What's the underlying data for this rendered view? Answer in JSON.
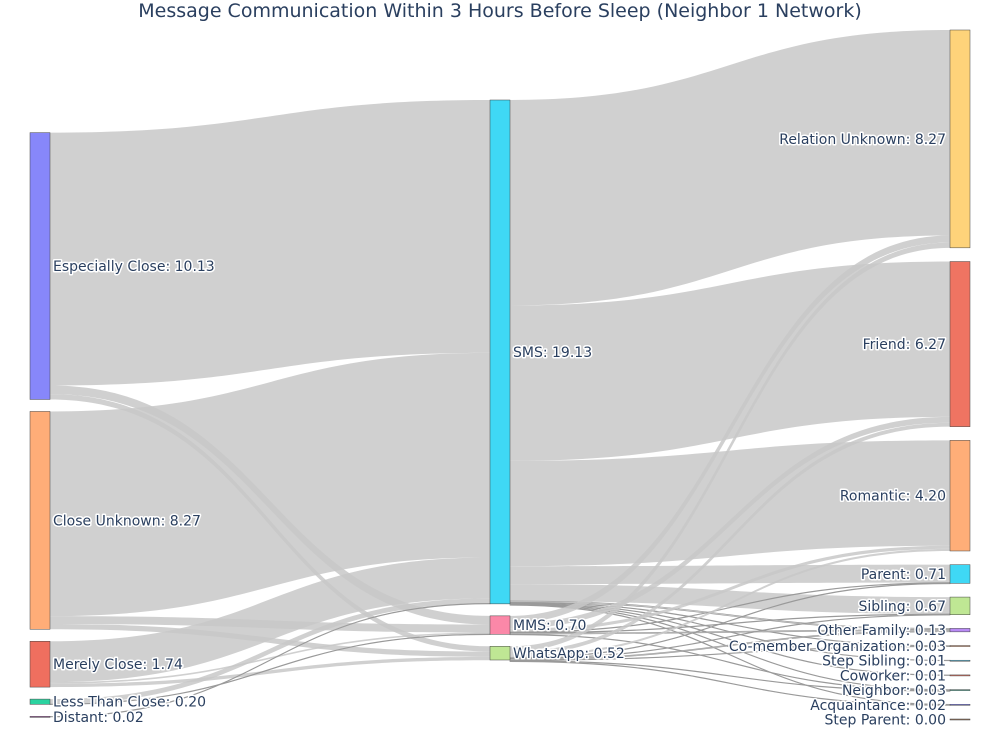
{
  "chart_data": {
    "type": "sankey",
    "title": "Message Communication Within 3 Hours Before Sleep (Neighbor 1 Network)",
    "link_color": "#c8c8c8",
    "columns": [
      [
        {
          "id": "especially_close",
          "label": "Especially Close: 10.13",
          "value": 10.13,
          "color": "#8787fa"
        },
        {
          "id": "close_unknown",
          "label": "Close Unknown: 8.27",
          "value": 8.27,
          "color": "#ffad78"
        },
        {
          "id": "merely_close",
          "label": "Merely Close: 1.74",
          "value": 1.74,
          "color": "#ef6f5f"
        },
        {
          "id": "less_than_close",
          "label": "Less Than Close: 0.20",
          "value": 0.2,
          "color": "#2bd3a0"
        },
        {
          "id": "distant",
          "label": "Distant: 0.02",
          "value": 0.02,
          "color": "#a05aa0"
        }
      ],
      [
        {
          "id": "sms",
          "label": "SMS: 19.13",
          "value": 19.13,
          "color": "#3fd8f5"
        },
        {
          "id": "mms",
          "label": "MMS: 0.70",
          "value": 0.7,
          "color": "#fb88a8"
        },
        {
          "id": "whatsapp",
          "label": "WhatsApp: 0.52",
          "value": 0.52,
          "color": "#bfe794"
        }
      ],
      [
        {
          "id": "relation_unknown",
          "label": "Relation Unknown: 8.27",
          "value": 8.27,
          "color": "#fed37a"
        },
        {
          "id": "friend",
          "label": "Friend: 6.27",
          "value": 6.27,
          "color": "#ef7462"
        },
        {
          "id": "romantic",
          "label": "Romantic: 4.20",
          "value": 4.2,
          "color": "#ffae78"
        },
        {
          "id": "parent",
          "label": "Parent: 0.71",
          "value": 0.71,
          "color": "#3fd8f5"
        },
        {
          "id": "sibling",
          "label": "Sibling: 0.67",
          "value": 0.67,
          "color": "#bfe794"
        },
        {
          "id": "other_family",
          "label": "Other Family: 0.13",
          "value": 0.13,
          "color": "#b98af5"
        },
        {
          "id": "comember_org",
          "label": "Co-member Organization: 0.03",
          "value": 0.03,
          "color": "#e8a07a"
        },
        {
          "id": "step_sibling",
          "label": "Step Sibling: 0.01",
          "value": 0.01,
          "color": "#67c8e8"
        },
        {
          "id": "coworker",
          "label": "Coworker: 0.01",
          "value": 0.01,
          "color": "#ef7462"
        },
        {
          "id": "neighbor",
          "label": "Neighbor: 0.03",
          "value": 0.03,
          "color": "#5ab4a0"
        },
        {
          "id": "acquaintance",
          "label": "Acquaintance: 0.02",
          "value": 0.02,
          "color": "#8787fa"
        },
        {
          "id": "step_parent",
          "label": "Step Parent: 0.00",
          "value": 0.0,
          "color": "#a07a60"
        }
      ]
    ],
    "links": [
      {
        "source": "especially_close",
        "target": "sms",
        "value": 9.6
      },
      {
        "source": "especially_close",
        "target": "mms",
        "value": 0.33
      },
      {
        "source": "especially_close",
        "target": "whatsapp",
        "value": 0.2
      },
      {
        "source": "close_unknown",
        "target": "sms",
        "value": 7.77
      },
      {
        "source": "close_unknown",
        "target": "mms",
        "value": 0.3
      },
      {
        "source": "close_unknown",
        "target": "whatsapp",
        "value": 0.2
      },
      {
        "source": "merely_close",
        "target": "sms",
        "value": 1.55
      },
      {
        "source": "merely_close",
        "target": "mms",
        "value": 0.06
      },
      {
        "source": "merely_close",
        "target": "whatsapp",
        "value": 0.13
      },
      {
        "source": "less_than_close",
        "target": "sms",
        "value": 0.19
      },
      {
        "source": "less_than_close",
        "target": "mms",
        "value": 0.01
      },
      {
        "source": "distant",
        "target": "sms",
        "value": 0.02
      },
      {
        "source": "sms",
        "target": "relation_unknown",
        "value": 7.8
      },
      {
        "source": "sms",
        "target": "friend",
        "value": 5.9
      },
      {
        "source": "sms",
        "target": "romantic",
        "value": 4.0
      },
      {
        "source": "sms",
        "target": "parent",
        "value": 0.68
      },
      {
        "source": "sms",
        "target": "sibling",
        "value": 0.64
      },
      {
        "source": "sms",
        "target": "other_family",
        "value": 0.05
      },
      {
        "source": "sms",
        "target": "comember_org",
        "value": 0.02
      },
      {
        "source": "sms",
        "target": "step_sibling",
        "value": 0.01
      },
      {
        "source": "sms",
        "target": "coworker",
        "value": 0.01
      },
      {
        "source": "sms",
        "target": "neighbor",
        "value": 0.01
      },
      {
        "source": "sms",
        "target": "acquaintance",
        "value": 0.01
      },
      {
        "source": "mms",
        "target": "relation_unknown",
        "value": 0.27
      },
      {
        "source": "mms",
        "target": "friend",
        "value": 0.22
      },
      {
        "source": "mms",
        "target": "romantic",
        "value": 0.12
      },
      {
        "source": "mms",
        "target": "parent",
        "value": 0.02
      },
      {
        "source": "mms",
        "target": "sibling",
        "value": 0.02
      },
      {
        "source": "mms",
        "target": "other_family",
        "value": 0.04
      },
      {
        "source": "mms",
        "target": "neighbor",
        "value": 0.01
      },
      {
        "source": "whatsapp",
        "target": "relation_unknown",
        "value": 0.2
      },
      {
        "source": "whatsapp",
        "target": "friend",
        "value": 0.15
      },
      {
        "source": "whatsapp",
        "target": "romantic",
        "value": 0.08
      },
      {
        "source": "whatsapp",
        "target": "parent",
        "value": 0.01
      },
      {
        "source": "whatsapp",
        "target": "sibling",
        "value": 0.01
      },
      {
        "source": "whatsapp",
        "target": "other_family",
        "value": 0.04
      },
      {
        "source": "whatsapp",
        "target": "comember_org",
        "value": 0.01
      },
      {
        "source": "whatsapp",
        "target": "neighbor",
        "value": 0.01
      },
      {
        "source": "whatsapp",
        "target": "acquaintance",
        "value": 0.01
      }
    ]
  }
}
